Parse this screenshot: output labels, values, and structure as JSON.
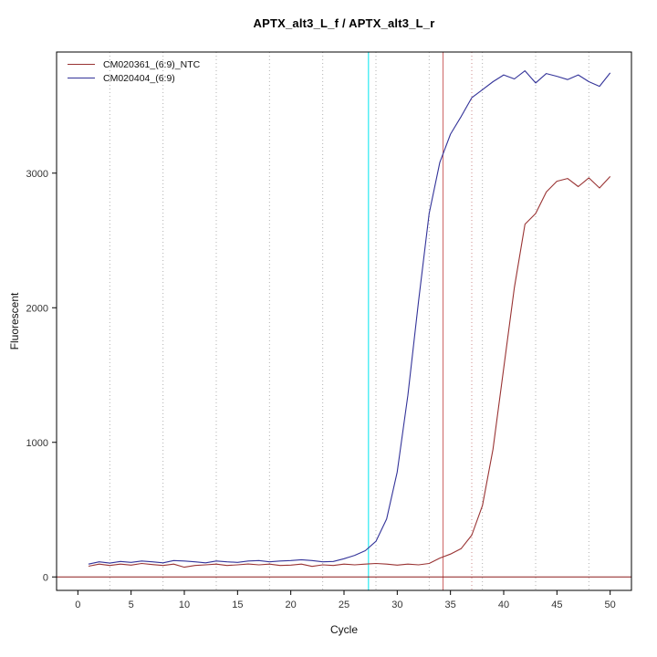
{
  "chart_data": {
    "type": "line",
    "title": "APTX_alt3_L_f / APTX_alt3_L_r",
    "xlabel": "Cycle",
    "ylabel": "Fluorescent",
    "xlim": [
      -2,
      52
    ],
    "ylim": [
      -100,
      3900
    ],
    "x_ticks": [
      0,
      5,
      10,
      15,
      20,
      25,
      30,
      35,
      40,
      45,
      50
    ],
    "y_ticks": [
      0,
      1000,
      2000,
      3000
    ],
    "x": [
      1,
      2,
      3,
      4,
      5,
      6,
      7,
      8,
      9,
      10,
      11,
      12,
      13,
      14,
      15,
      16,
      17,
      18,
      19,
      20,
      21,
      22,
      23,
      24,
      25,
      26,
      27,
      28,
      29,
      30,
      31,
      32,
      33,
      34,
      35,
      36,
      37,
      38,
      39,
      40,
      41,
      42,
      43,
      44,
      45,
      46,
      47,
      48,
      49,
      50
    ],
    "series": [
      {
        "name": "CM020361_(6:9)_NTC",
        "color": "#993333",
        "values": [
          80,
          95,
          85,
          95,
          88,
          100,
          92,
          85,
          95,
          72,
          85,
          90,
          95,
          85,
          90,
          96,
          90,
          95,
          85,
          88,
          95,
          78,
          90,
          85,
          95,
          90,
          95,
          100,
          95,
          88,
          95,
          90,
          100,
          140,
          170,
          210,
          310,
          530,
          950,
          1550,
          2150,
          2620,
          2700,
          2860,
          2940,
          2960,
          2900,
          2965,
          2890,
          2975
        ]
      },
      {
        "name": "CM020404_(6:9)",
        "color": "#333399",
        "values": [
          95,
          112,
          103,
          115,
          108,
          118,
          112,
          105,
          122,
          118,
          112,
          105,
          118,
          112,
          108,
          118,
          122,
          112,
          118,
          122,
          128,
          122,
          112,
          115,
          135,
          160,
          195,
          265,
          430,
          780,
          1350,
          2050,
          2700,
          3080,
          3290,
          3420,
          3560,
          3620,
          3680,
          3730,
          3700,
          3760,
          3670,
          3740,
          3720,
          3695,
          3730,
          3680,
          3645,
          3745
        ]
      }
    ],
    "reference_lines": {
      "grid_x": [
        3,
        8,
        13,
        18,
        23,
        28,
        33,
        38,
        43,
        48
      ],
      "grid_color": "#b0b0b0",
      "vertical": [
        {
          "x": 27.3,
          "color": "#00e5ee",
          "style": "solid"
        },
        {
          "x": 34.3,
          "color": "#cd6666",
          "style": "solid"
        },
        {
          "x": 37.0,
          "color": "#cd8888",
          "style": "dotted"
        }
      ],
      "horizontal": [
        {
          "y": 0,
          "color": "#8b1a1a",
          "style": "solid"
        }
      ]
    },
    "legend_position": "top-left",
    "grid": true,
    "axis_color": "#000000",
    "tick_label_color": "#333333"
  }
}
